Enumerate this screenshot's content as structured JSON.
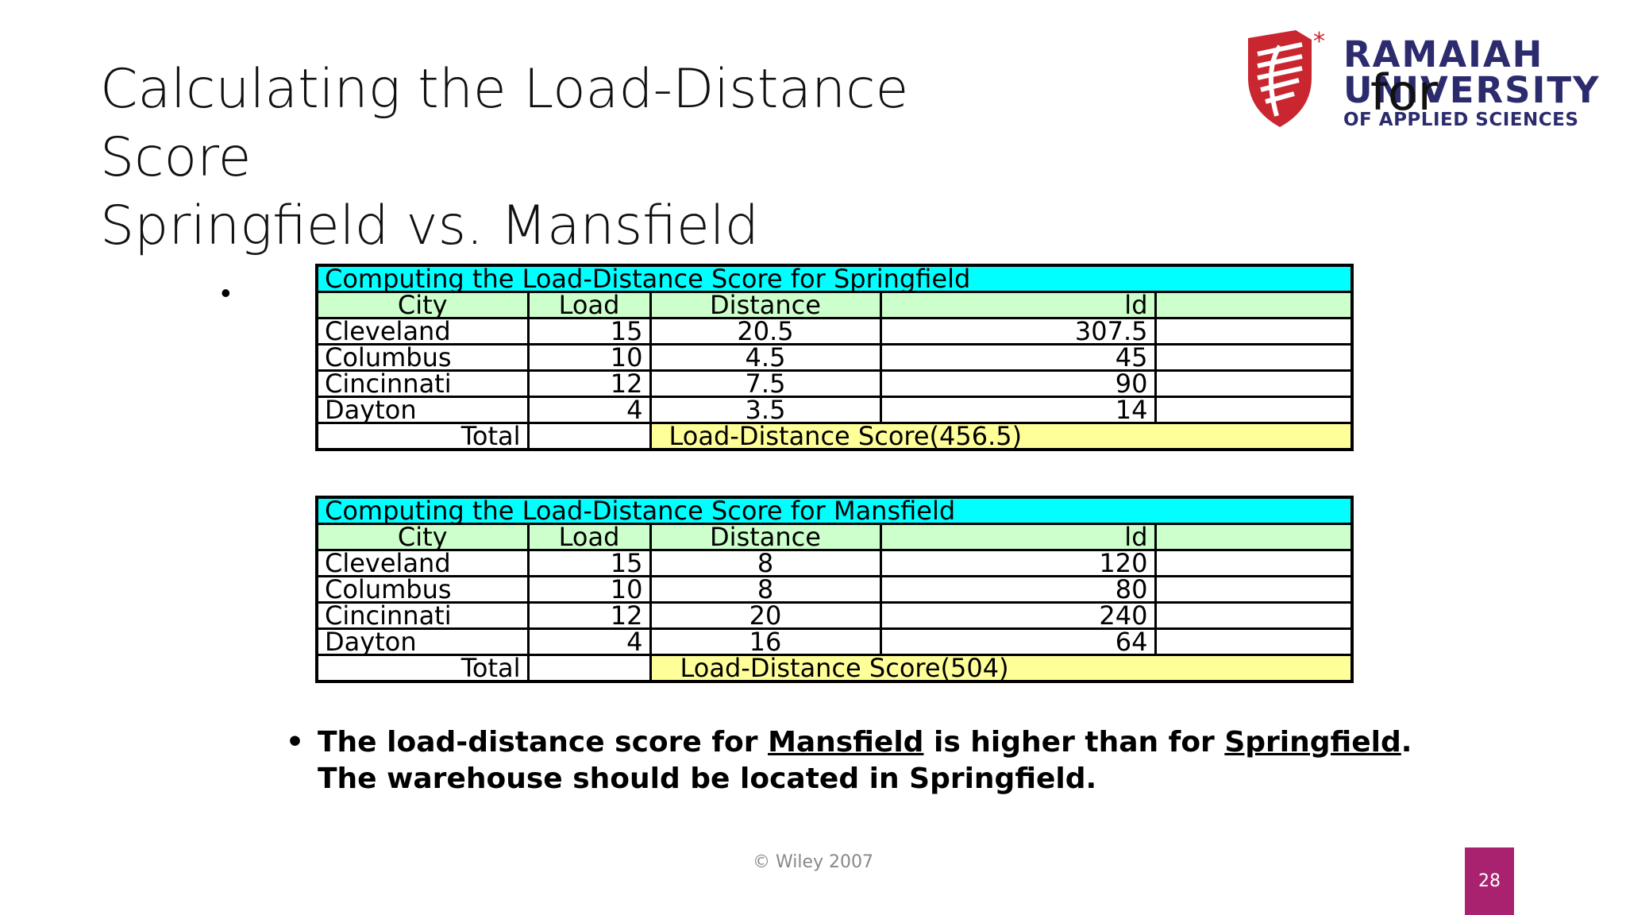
{
  "title": {
    "line1": "Calculating the Load-Distance Score",
    "line2": "Springfield vs. Mansfield",
    "trailing_word": "for"
  },
  "logo": {
    "name_line1": "RAMAIAH",
    "name_line2": "UNIVERSITY",
    "name_line3": "OF APPLIED SCIENCES",
    "colors": {
      "red": "#c9262f",
      "navy": "#2c2b6e"
    }
  },
  "bullet_marker": "•",
  "tables": [
    {
      "caption": "Computing the Load-Distance Score for Springfield",
      "headers": [
        "City",
        "Load",
        "Distance",
        "ld",
        ""
      ],
      "rows": [
        {
          "city": "Cleveland",
          "load": "15",
          "distance": "20.5",
          "ld": "307.5"
        },
        {
          "city": "Columbus",
          "load": "10",
          "distance": "4.5",
          "ld": "45"
        },
        {
          "city": "Cincinnati",
          "load": "12",
          "distance": "7.5",
          "ld": "90"
        },
        {
          "city": "Dayton",
          "load": "4",
          "distance": "3.5",
          "ld": "14"
        }
      ],
      "total_label": "Total",
      "score_text": "Load-Distance Score(456.5)"
    },
    {
      "caption": "Computing the Load-Distance Score for Mansfield",
      "headers": [
        "City",
        "Load",
        "Distance",
        "ld",
        ""
      ],
      "rows": [
        {
          "city": "Cleveland",
          "load": "15",
          "distance": "8",
          "ld": "120"
        },
        {
          "city": "Columbus",
          "load": "10",
          "distance": "8",
          "ld": "80"
        },
        {
          "city": "Cincinnati",
          "load": "12",
          "distance": "20",
          "ld": "240"
        },
        {
          "city": "Dayton",
          "load": "4",
          "distance": "16",
          "ld": "64"
        }
      ],
      "total_label": "Total",
      "score_text": "Load-Distance Score(504)"
    }
  ],
  "conclusion": {
    "marker": "•",
    "part1": "The load-distance score for ",
    "mansfield": "Mansfield",
    "part2": " is higher than for ",
    "springfield": "Springfield",
    "part3": ". The warehouse should be located in Springfield."
  },
  "footer": "© Wiley 2007",
  "page_number": "28",
  "colors": {
    "caption_bg": "#00ffff",
    "header_bg": "#ccffcc",
    "score_bg": "#ffff99",
    "page_badge": "#a8226f"
  }
}
